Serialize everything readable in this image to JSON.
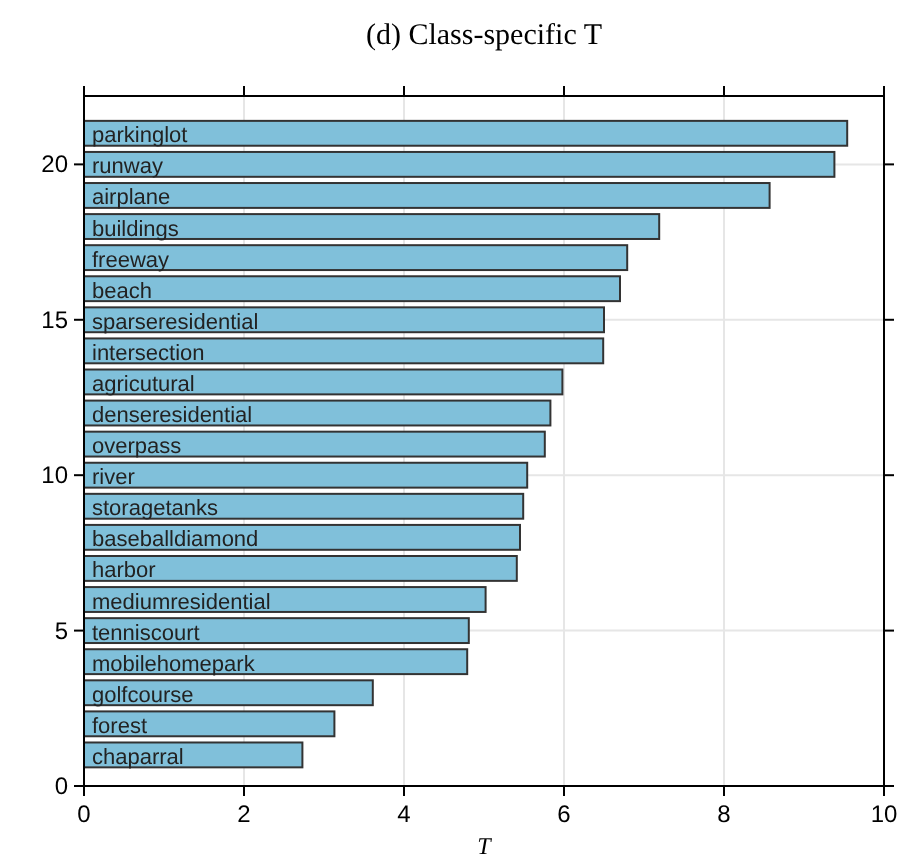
{
  "chart_data": {
    "type": "bar",
    "orientation": "horizontal",
    "title": "(d) Class-specific T",
    "xlabel": "T",
    "x": [
      21,
      20,
      19,
      18,
      17,
      16,
      15,
      14,
      13,
      12,
      11,
      10,
      9,
      8,
      7,
      6,
      5,
      4,
      3,
      2,
      1
    ],
    "values": [
      9.54,
      9.38,
      8.57,
      7.19,
      6.79,
      6.7,
      6.5,
      6.49,
      5.98,
      5.83,
      5.76,
      5.54,
      5.49,
      5.45,
      5.41,
      5.02,
      4.81,
      4.79,
      3.61,
      3.13,
      2.73
    ],
    "value_labels": [
      "parkinglot",
      "runway",
      "airplane",
      "buildings",
      "freeway",
      "beach",
      "sparseresidential",
      "intersection",
      "agricutural",
      "denseresidential",
      "overpass",
      "river",
      "storagetanks",
      "baseballdiamond",
      "harbor",
      "mediumresidential",
      "tenniscourt",
      "mobilehomepark",
      "golfcourse",
      "forest",
      "chaparral"
    ],
    "color": "#80c0da",
    "xlim": [
      0,
      10
    ],
    "xticks": [
      0,
      2,
      4,
      6,
      8,
      10
    ],
    "ylim": [
      0,
      22.2
    ],
    "yticks": [
      0,
      5,
      10,
      15,
      20
    ],
    "grid": true
  }
}
